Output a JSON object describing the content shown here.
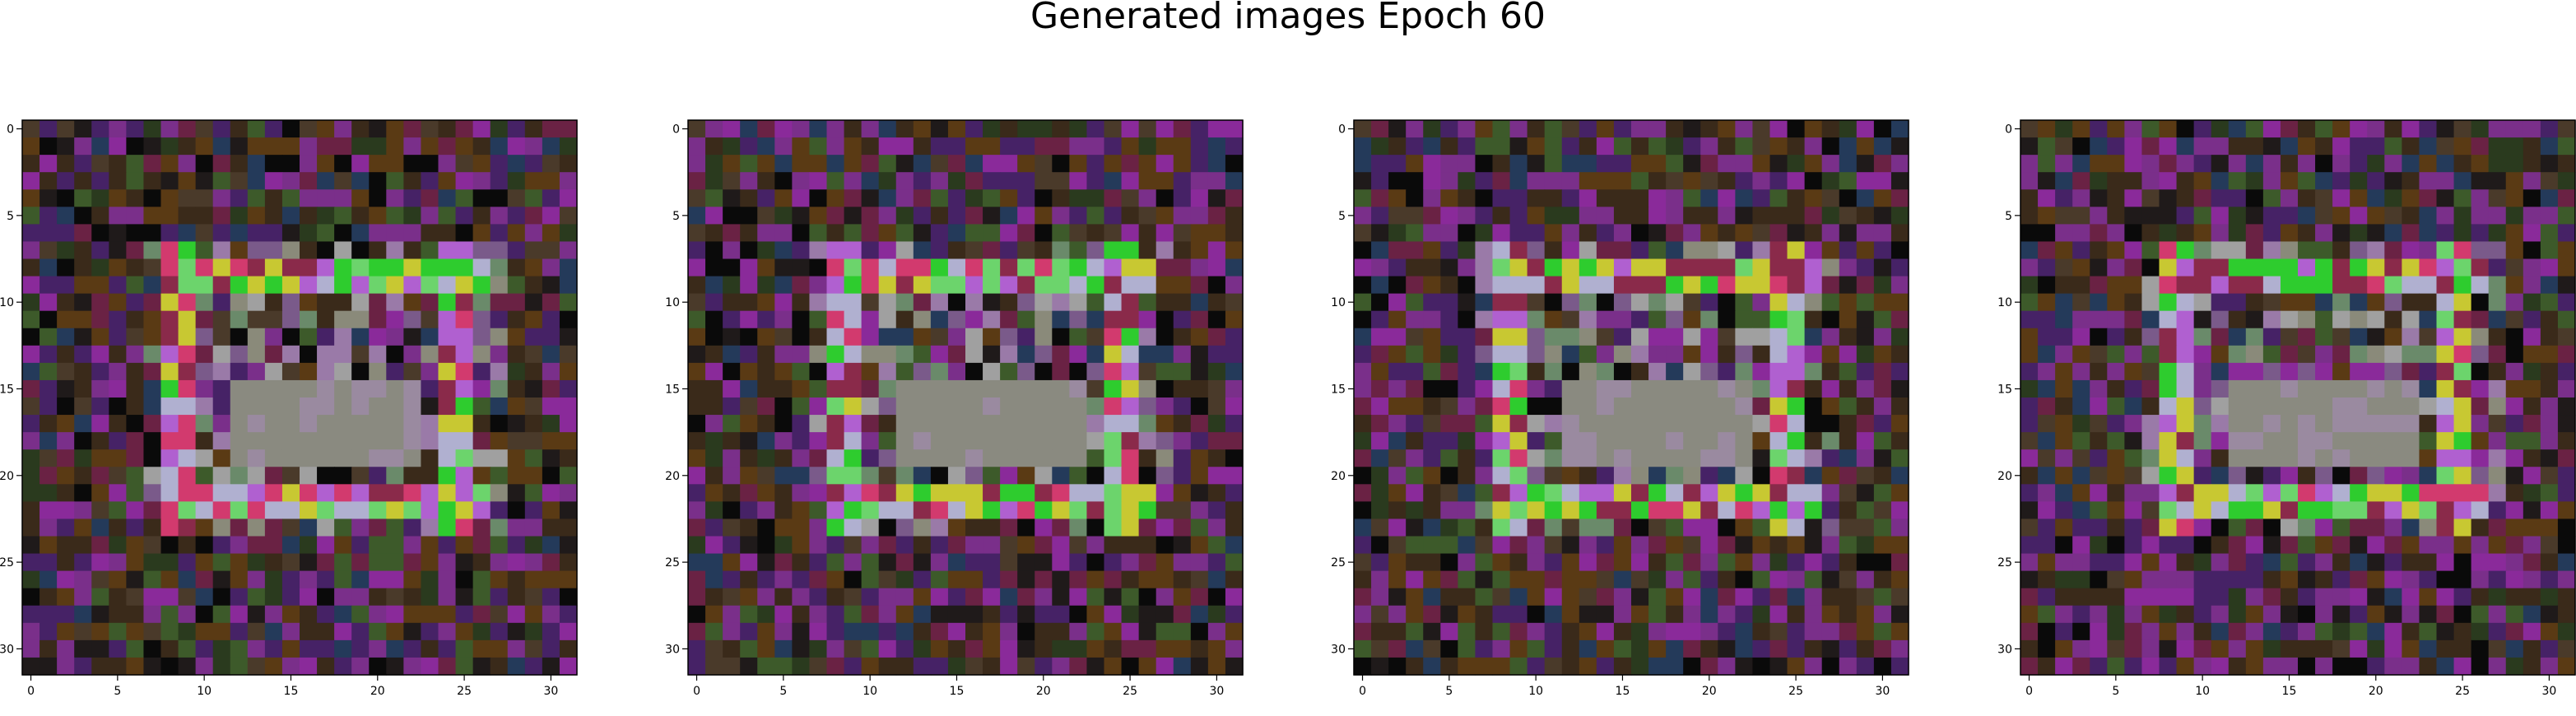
{
  "figure": {
    "title": "Generated images Epoch 60"
  },
  "panels": [
    {
      "panel_label": "generated-image-1",
      "xticks": [
        "0",
        "5",
        "10",
        "15",
        "20",
        "25",
        "30"
      ],
      "yticks": [
        "0",
        "5",
        "10",
        "15",
        "20",
        "25",
        "30"
      ]
    },
    {
      "panel_label": "generated-image-2",
      "xticks": [
        "0",
        "5",
        "10",
        "15",
        "20",
        "25",
        "30"
      ],
      "yticks": [
        "0",
        "5",
        "10",
        "15",
        "20",
        "25",
        "30"
      ]
    },
    {
      "panel_label": "generated-image-3",
      "xticks": [
        "0",
        "5",
        "10",
        "15",
        "20",
        "25",
        "30"
      ],
      "yticks": [
        "0",
        "5",
        "10",
        "15",
        "20",
        "25",
        "30"
      ]
    },
    {
      "panel_label": "generated-image-4",
      "xticks": [
        "0",
        "5",
        "10",
        "15",
        "20",
        "25",
        "30"
      ],
      "yticks": [
        "0",
        "5",
        "10",
        "15",
        "20",
        "25",
        "30"
      ]
    }
  ],
  "image_grid": {
    "rows": 32,
    "cols": 32,
    "palette": [
      "#3a2a1a",
      "#5a3a14",
      "#2a3a1e",
      "#462266",
      "#7a2f8a",
      "#1f1a1a",
      "#3d5a2a",
      "#6a2244",
      "#8a2a9a",
      "#243a5a",
      "#a0a060",
      "#b060d0",
      "#8a8a7a",
      "#5a5a5a",
      "#2ecc2e",
      "#d23a6e",
      "#c8c832",
      "#88a888",
      "#0a0a0a",
      "#4a3a2a"
    ]
  }
}
